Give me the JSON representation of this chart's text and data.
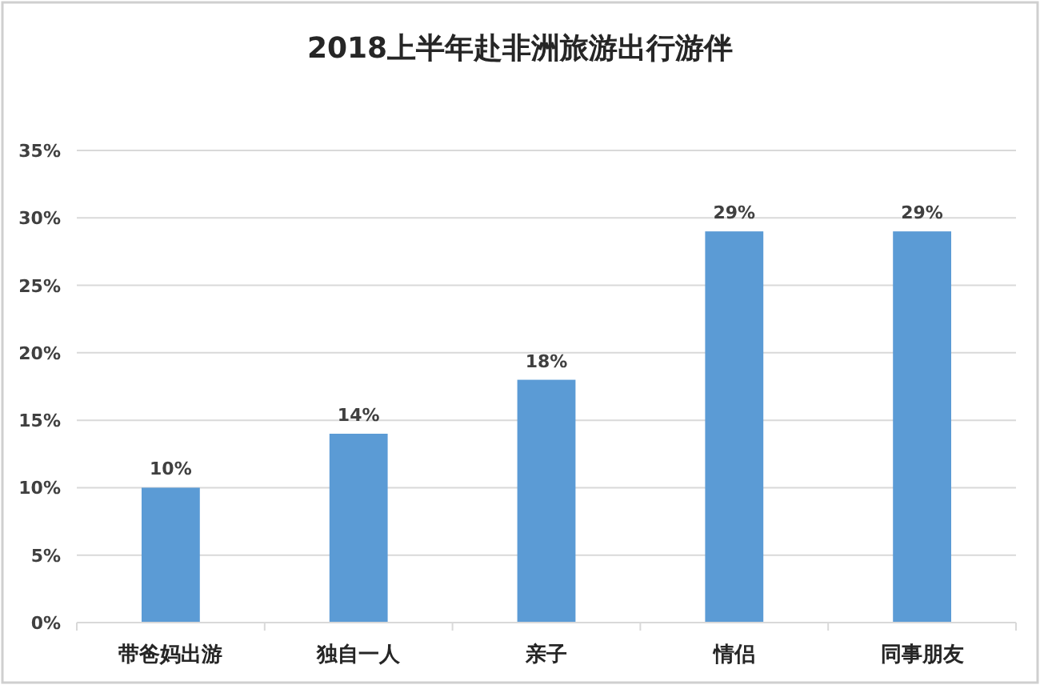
{
  "chart_data": {
    "type": "bar",
    "title": "2018上半年赴非洲旅游出行游伴",
    "categories": [
      "带爸妈出游",
      "独自一人",
      "亲子",
      "情侣",
      "同事朋友"
    ],
    "values": [
      10,
      14,
      18,
      29,
      29
    ],
    "value_labels": [
      "10%",
      "14%",
      "18%",
      "29%",
      "29%"
    ],
    "color": "#5b9bd5",
    "ylim": [
      0,
      35
    ],
    "yticks": [
      {
        "value": 0,
        "label": "0%"
      },
      {
        "value": 5,
        "label": "5%"
      },
      {
        "value": 10,
        "label": "10%"
      },
      {
        "value": 15,
        "label": "15%"
      },
      {
        "value": 20,
        "label": "20%"
      },
      {
        "value": 25,
        "label": "25%"
      },
      {
        "value": 30,
        "label": "30%"
      },
      {
        "value": 35,
        "label": "35%"
      }
    ],
    "grid": "y"
  }
}
